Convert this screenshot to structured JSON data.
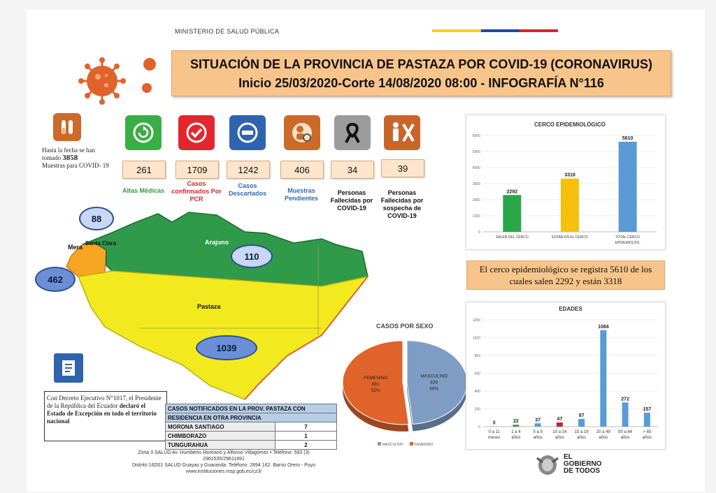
{
  "header": {
    "ministry": "MINISTERIO DE SALUD PÚBLICA",
    "title_line1": "SITUACIÓN DE LA PROVINCIA DE PASTAZA POR COVID-19 (CORONAVIRUS)",
    "title_line2": "Inicio 25/03/2020-Corte 14/08/2020 08:00 - INFOGRAFÍA N°116"
  },
  "samples": {
    "prefix": "Hasta la fecha se han tomado",
    "count": "3858",
    "suffix": "Muestras para COVID- 19"
  },
  "stats": [
    {
      "value": "261",
      "label": "Altas Médicas",
      "color": "#2e9a3c",
      "bg": "#3aae45"
    },
    {
      "value": "1709",
      "label": "Casos confirmados Por PCR",
      "color": "#d9262b",
      "bg": "#e3262d"
    },
    {
      "value": "1242",
      "label": "Casos Descartados",
      "color": "#2f69b3",
      "bg": "#2f63ad"
    },
    {
      "value": "406",
      "label": "Muestras Pendientes",
      "color": "#2f69b3",
      "bg": "#cc6a29"
    },
    {
      "value": "34",
      "label": "Personas Fallecidas por COVID-19",
      "color": "#111111",
      "bg": "#9c9c9c"
    },
    {
      "value": "39",
      "label": "Personas Fallecidas por sospecha de COVID-19",
      "color": "#111111",
      "bg": "#c9652a"
    }
  ],
  "map": {
    "regions": {
      "arajuno": "Arajuno",
      "mera": "Mera",
      "santa_clara": "Santa Clara",
      "pastaza": "Pastaza"
    },
    "counts": {
      "santa_clara": "88",
      "mera": "462",
      "arajuno": "110",
      "pastaza": "1039"
    }
  },
  "decree": {
    "part1": "Con Decreto Ejecutivo N°1017, el Presidente de la República del Ecuador",
    "bold": "declaró el Estado de Excepción en todo el territorio nacional"
  },
  "cases_table": {
    "header1": "CASOS NOTIFICADOS EN LA PROV. PASTAZA CON",
    "header2": "RESIDENCIA EN OTRA PROVINCIA",
    "rows": [
      {
        "province": "MORONA SANTIAGO",
        "count": "7"
      },
      {
        "province": "CHIMBORAZO",
        "count": "1"
      },
      {
        "province": "TUNGURAHUA",
        "count": "2"
      }
    ]
  },
  "footer": {
    "line1": "Zona 3 SALUD Av. Humberto Moreano y Alfonso Villagómez • Teléfono: 593 (3)",
    "line2": "2961535/29611891",
    "line3": "Distrito 16D01 SALUD Guayas y Guaranda. Teléfono: 2894 162. Barrio Orero - Puyo",
    "line4": "www.instituciones.msp.gob.ec/cz3/"
  },
  "cerco_summary": "El cerco epidemiológico se registra 5610 de los cuales salen 2292 y están 3318",
  "logo": {
    "line1": "EL",
    "line2": "GOBIERNO",
    "line3": "DE TODOS"
  },
  "colors": {
    "orange_box": "#f7c48b",
    "green": "#2aa848",
    "yellow": "#f4c20d",
    "blue": "#5b9bd5",
    "map_green": "#2e9a4a",
    "map_yellow": "#f2ea1f",
    "masculino": "#7f9dc4",
    "femenino": "#e0632c"
  },
  "chart_data": [
    {
      "type": "bar",
      "title": "CERCO  EPIDEMIOLÓGICO",
      "categories": [
        "SALEN DEL CERCO",
        "ESTAN EN EL CERCO",
        "TOTAL CERCO EPIDEMIOLÓG."
      ],
      "values": [
        2292,
        3318,
        5610
      ],
      "colors": [
        "#2aa848",
        "#f4c20d",
        "#5b9bd5"
      ],
      "ylim": [
        0,
        6000
      ],
      "yticks": [
        0,
        1000,
        2000,
        3000,
        4000,
        5000,
        6000
      ]
    },
    {
      "type": "pie",
      "title": "CASOS POR SEXO",
      "slices": [
        {
          "name": "MASCULINO",
          "value": 828,
          "pct": "48%",
          "color": "#7f9dc4"
        },
        {
          "name": "FEMENINO",
          "value": 881,
          "pct": "52%",
          "color": "#e0632c"
        }
      ],
      "legend": "bottom"
    },
    {
      "type": "bar",
      "title": "EDADES",
      "categories": [
        "0 a 11 meses",
        "1 a 4 años",
        "5 a 9 años",
        "10 a 14 años",
        "15 a 19 años",
        "20 a 49 años",
        "50 a 64 años",
        "> 65 años"
      ],
      "values": [
        3,
        22,
        37,
        47,
        87,
        1084,
        272,
        157
      ],
      "colors": [
        "#5b9bd5",
        "#2aa848",
        "#5b9bd5",
        "#c0282d",
        "#5b9bd5",
        "#5b9bd5",
        "#5b9bd5",
        "#5b9bd5"
      ],
      "ylim": [
        0,
        1200
      ],
      "yticks": [
        0,
        200,
        400,
        600,
        800,
        1000,
        1200
      ]
    }
  ]
}
